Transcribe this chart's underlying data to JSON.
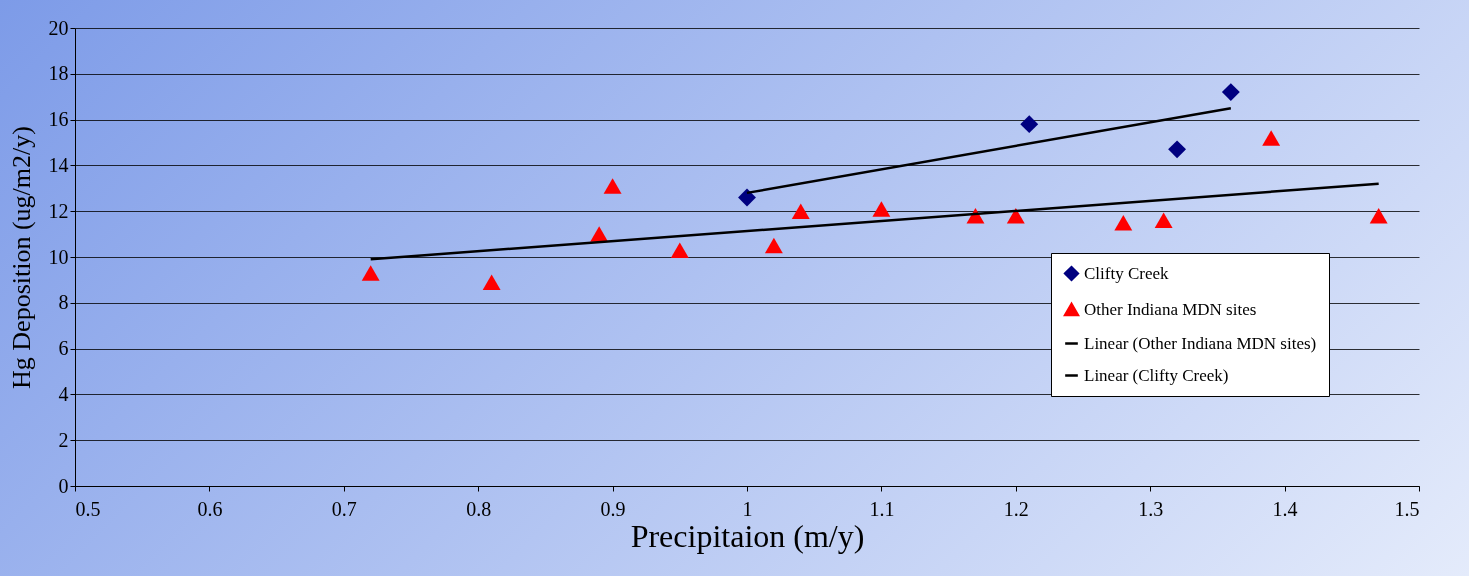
{
  "chart_data": {
    "type": "scatter",
    "xlabel": "Precipitaion (m/y)",
    "ylabel": "Hg Deposition (ug/m2/y)",
    "xlim": [
      0.5,
      1.5
    ],
    "xticks": [
      0.5,
      0.6,
      0.7,
      0.8,
      0.9,
      1,
      1.1,
      1.2,
      1.3,
      1.4,
      1.5
    ],
    "ylim": [
      0,
      20
    ],
    "yticks": [
      0,
      2,
      4,
      6,
      8,
      10,
      12,
      14,
      16,
      18,
      20
    ],
    "grid": "y",
    "legend": "bottom right",
    "series": [
      {
        "name": "Clifty Creek",
        "color": "#000080",
        "marker": "diamond",
        "x": [
          1.0,
          1.21,
          1.32,
          1.36
        ],
        "values": [
          12.6,
          15.8,
          14.7,
          17.2
        ]
      },
      {
        "name": "Other Indiana MDN sites",
        "color": "#ff0000",
        "marker": "triangle",
        "x": [
          0.72,
          0.81,
          0.89,
          0.9,
          0.95,
          1.02,
          1.04,
          1.1,
          1.17,
          1.2,
          1.28,
          1.31,
          1.39,
          1.47
        ],
        "values": [
          9.3,
          8.9,
          11.0,
          13.1,
          10.3,
          10.5,
          12.0,
          12.1,
          11.8,
          11.8,
          11.5,
          11.6,
          15.2,
          11.8
        ]
      },
      {
        "name": "Linear (Other Indiana MDN sites)",
        "type": "line",
        "color": "#000000",
        "x": [
          0.72,
          1.47
        ],
        "values": [
          9.9,
          13.2
        ]
      },
      {
        "name": "Linear (Clifty Creek)",
        "type": "line",
        "color": "#000000",
        "x": [
          1.0,
          1.36
        ],
        "values": [
          12.8,
          16.5
        ]
      }
    ]
  }
}
